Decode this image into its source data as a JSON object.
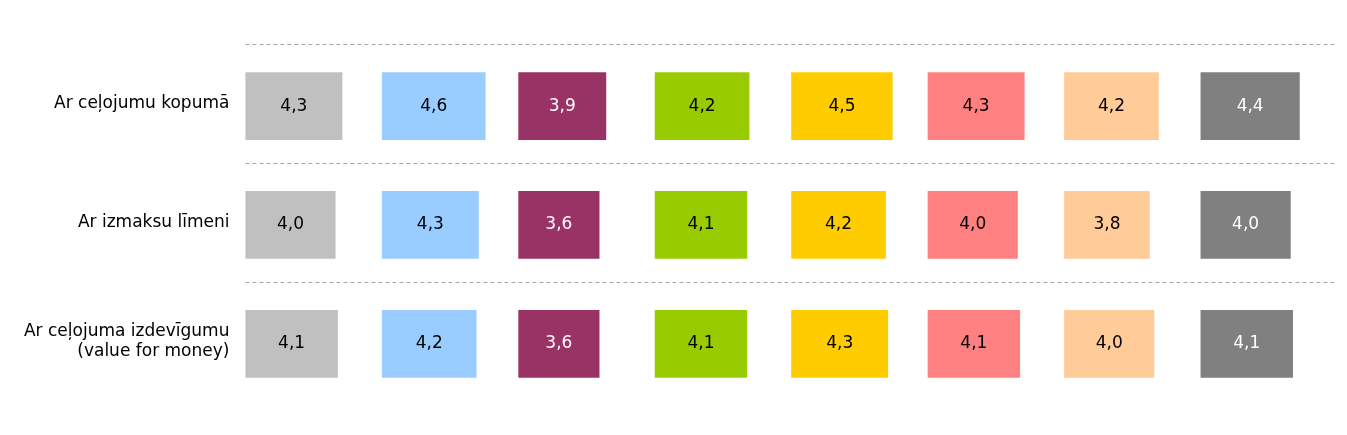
{
  "chart_data": {
    "type": "heatmap",
    "categories": [
      null,
      null,
      null,
      null,
      null,
      null,
      null,
      null
    ],
    "y_categories": [
      "Ar ceļojumu kopumā",
      "Ar izmaksu līmeni",
      "Ar ceļojuma izdevīgumu\n(value for money)"
    ],
    "cells": [
      [
        4.3,
        4.6,
        3.9,
        4.2,
        4.5,
        4.3,
        4.2,
        4.4
      ],
      [
        4.0,
        4.3,
        3.6,
        4.1,
        4.2,
        4.0,
        3.8,
        4.0
      ],
      [
        4.1,
        4.2,
        3.6,
        4.1,
        4.3,
        4.1,
        4.0,
        4.1
      ]
    ],
    "cell_labels": [
      [
        "4,3",
        "4,6",
        "3,9",
        "4,2",
        "4,5",
        "4,3",
        "4,2",
        "4,4"
      ],
      [
        "4,0",
        "4,3",
        "3,6",
        "4,1",
        "4,2",
        "4,0",
        "3,8",
        "4,0"
      ],
      [
        "4,1",
        "4,2",
        "3,6",
        "4,1",
        "4,3",
        "4,1",
        "4,0",
        "4,1"
      ]
    ],
    "colors": [
      "#c0c0c0",
      "#99ccff",
      "#993366",
      "#99cc00",
      "#ffcc00",
      "#ff8080",
      "#ffcc99",
      "#808080"
    ],
    "grid": true
  }
}
